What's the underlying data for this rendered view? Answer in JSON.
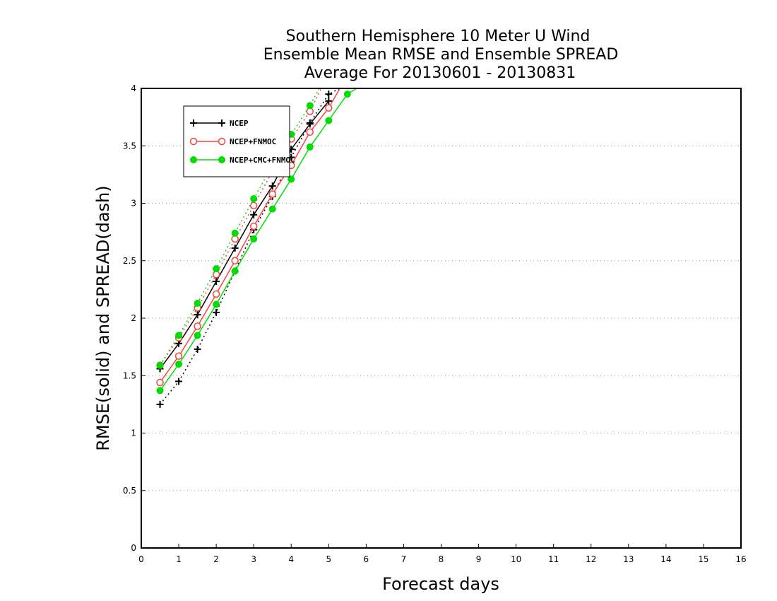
{
  "chart_data": {
    "type": "line",
    "title": [
      "Southern Hemisphere 10 Meter U Wind",
      "Ensemble Mean RMSE and Ensemble SPREAD",
      "Average For 20130601 - 20130831"
    ],
    "xlabel": "Forecast days",
    "ylabel": "RMSE(solid) and SPREAD(dash)",
    "xlim": [
      0,
      16
    ],
    "ylim": [
      0,
      4
    ],
    "xticks": [
      "0",
      "1",
      "2",
      "3",
      "4",
      "5",
      "6",
      "7",
      "8",
      "9",
      "10",
      "11",
      "12",
      "13",
      "14",
      "15",
      "16"
    ],
    "yticks": [
      "0",
      "0.5",
      "1",
      "1.5",
      "2",
      "2.5",
      "3",
      "3.5",
      "4"
    ],
    "grid": "horizontal-dotted",
    "legend_position": "top-left",
    "series": [
      {
        "name": "NCEP",
        "color": "#000000",
        "marker": "plus",
        "rmse": {
          "x": [
            0.5,
            1.0,
            1.5,
            2.0,
            2.5,
            3.0,
            3.5,
            4.0,
            4.5,
            5.0
          ],
          "y": [
            1.56,
            1.78,
            2.03,
            2.32,
            2.61,
            2.9,
            3.15,
            3.47,
            3.69,
            3.89
          ]
        },
        "spread": {
          "x": [
            0.5,
            1.0,
            1.5,
            2.0,
            2.5,
            3.0,
            3.5,
            4.0,
            4.5,
            5.0,
            5.3
          ],
          "y": [
            1.25,
            1.45,
            1.73,
            2.05,
            2.41,
            2.77,
            3.06,
            3.4,
            3.7,
            3.95,
            4.0
          ]
        }
      },
      {
        "name": "NCEP+FNMOC",
        "color": "#ff4040",
        "marker": "open-circle",
        "rmse": {
          "x": [
            0.5,
            1.0,
            1.5,
            2.0,
            2.5,
            3.0,
            3.5,
            4.0,
            4.5,
            5.0,
            5.3
          ],
          "y": [
            1.44,
            1.67,
            1.93,
            2.21,
            2.5,
            2.8,
            3.08,
            3.33,
            3.62,
            3.83,
            4.0
          ]
        },
        "spread": {
          "x": [
            0.5,
            1.0,
            1.5,
            2.0,
            2.5,
            3.0,
            3.5,
            4.0,
            4.5,
            4.8
          ],
          "y": [
            1.59,
            1.83,
            2.09,
            2.38,
            2.69,
            2.98,
            3.28,
            3.56,
            3.8,
            4.0
          ]
        }
      },
      {
        "name": "NCEP+CMC+FNMOC",
        "color": "#00dd00",
        "marker": "filled-circle",
        "rmse": {
          "x": [
            0.5,
            1.0,
            1.5,
            2.0,
            2.5,
            3.0,
            3.5,
            4.0,
            4.5,
            5.0,
            5.5,
            5.75
          ],
          "y": [
            1.37,
            1.6,
            1.85,
            2.12,
            2.41,
            2.69,
            2.95,
            3.21,
            3.49,
            3.72,
            3.95,
            4.0
          ]
        },
        "spread": {
          "x": [
            0.5,
            1.0,
            1.5,
            2.0,
            2.5,
            3.0,
            3.5,
            4.0,
            4.5,
            4.75
          ],
          "y": [
            1.59,
            1.85,
            2.13,
            2.43,
            2.74,
            3.04,
            3.33,
            3.6,
            3.85,
            4.0
          ]
        }
      }
    ]
  }
}
